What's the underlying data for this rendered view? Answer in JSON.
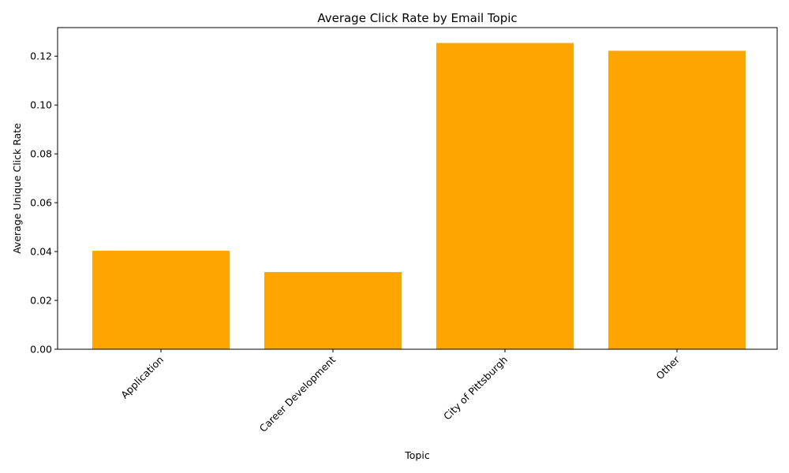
{
  "chart_data": {
    "type": "bar",
    "title": "Average Click Rate by Email Topic",
    "xlabel": "Topic",
    "ylabel": "Average Unique Click Rate",
    "categories": [
      "Application",
      "Career Development",
      "City of Pittsburgh",
      "Other"
    ],
    "values": [
      0.0403,
      0.0316,
      0.1254,
      0.1222
    ],
    "ylim": [
      0,
      0.1317
    ],
    "yticks": [
      0.0,
      0.02,
      0.04,
      0.06,
      0.08,
      0.1,
      0.12
    ],
    "ytick_labels": [
      "0.00",
      "0.02",
      "0.04",
      "0.06",
      "0.08",
      "0.10",
      "0.12"
    ],
    "xtick_rotation": 45,
    "grid": false,
    "bar_color": "#ffa500"
  }
}
